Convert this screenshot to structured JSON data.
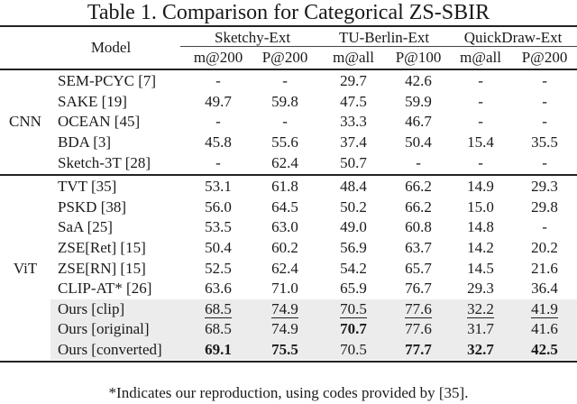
{
  "title": "Table 1. Comparison for Categorical ZS-SBIR",
  "header": {
    "model_label": "Model",
    "groups": [
      "Sketchy-Ext",
      "TU-Berlin-Ext",
      "QuickDraw-Ext"
    ],
    "metrics": [
      "m@200",
      "P@200",
      "m@all",
      "P@100",
      "m@all",
      "P@200"
    ]
  },
  "sections": [
    {
      "label": "CNN",
      "rows": [
        {
          "model": "SEM-PCYC [7]",
          "values": [
            "-",
            "-",
            "29.7",
            "42.6",
            "-",
            "-"
          ]
        },
        {
          "model": "SAKE [19]",
          "values": [
            "49.7",
            "59.8",
            "47.5",
            "59.9",
            "-",
            "-"
          ]
        },
        {
          "model": "OCEAN [45]",
          "values": [
            "-",
            "-",
            "33.3",
            "46.7",
            "-",
            "-"
          ]
        },
        {
          "model": "BDA [3]",
          "values": [
            "45.8",
            "55.6",
            "37.4",
            "50.4",
            "15.4",
            "35.5"
          ]
        },
        {
          "model": "Sketch-3T [28]",
          "values": [
            "-",
            "62.4",
            "50.7",
            "-",
            "-",
            "-"
          ]
        }
      ]
    },
    {
      "label": "ViT",
      "rows": [
        {
          "model": "TVT [35]",
          "values": [
            "53.1",
            "61.8",
            "48.4",
            "66.2",
            "14.9",
            "29.3"
          ]
        },
        {
          "model": "PSKD [38]",
          "values": [
            "56.0",
            "64.5",
            "50.2",
            "66.2",
            "15.0",
            "29.8"
          ]
        },
        {
          "model": "SaA [25]",
          "values": [
            "53.5",
            "63.0",
            "49.0",
            "60.8",
            "14.8",
            "-"
          ]
        },
        {
          "model": "ZSE[Ret] [15]",
          "values": [
            "50.4",
            "60.2",
            "56.9",
            "63.7",
            "14.2",
            "20.2"
          ]
        },
        {
          "model": "ZSE[RN] [15]",
          "values": [
            "52.5",
            "62.4",
            "54.2",
            "65.7",
            "14.5",
            "21.6"
          ]
        },
        {
          "model": "CLIP-AT* [26]",
          "values": [
            "63.6",
            "71.0",
            "65.9",
            "76.7",
            "29.3",
            "36.4"
          ]
        },
        {
          "model": "Ours [clip]",
          "values": [
            "68.5",
            "74.9",
            "70.5",
            "77.6",
            "32.2",
            "41.9"
          ],
          "shaded": true,
          "underline": [
            true,
            true,
            true,
            true,
            true,
            true
          ],
          "bold": [
            false,
            false,
            false,
            false,
            false,
            false
          ]
        },
        {
          "model": "Ours [original]",
          "values": [
            "68.5",
            "74.9",
            "70.7",
            "77.6",
            "31.7",
            "41.6"
          ],
          "shaded": true,
          "underline": [
            false,
            false,
            false,
            false,
            false,
            false
          ],
          "bold": [
            false,
            false,
            true,
            false,
            false,
            false
          ]
        },
        {
          "model": "Ours [converted]",
          "values": [
            "69.1",
            "75.5",
            "70.5",
            "77.7",
            "32.7",
            "42.5"
          ],
          "shaded": true,
          "underline": [
            false,
            false,
            false,
            false,
            false,
            false
          ],
          "bold": [
            true,
            true,
            false,
            true,
            true,
            true
          ]
        }
      ]
    }
  ],
  "footnote": "*Indicates our reproduction, using codes provided by [35].",
  "colors": {
    "shade": "#ececec",
    "rule": "#222222"
  }
}
